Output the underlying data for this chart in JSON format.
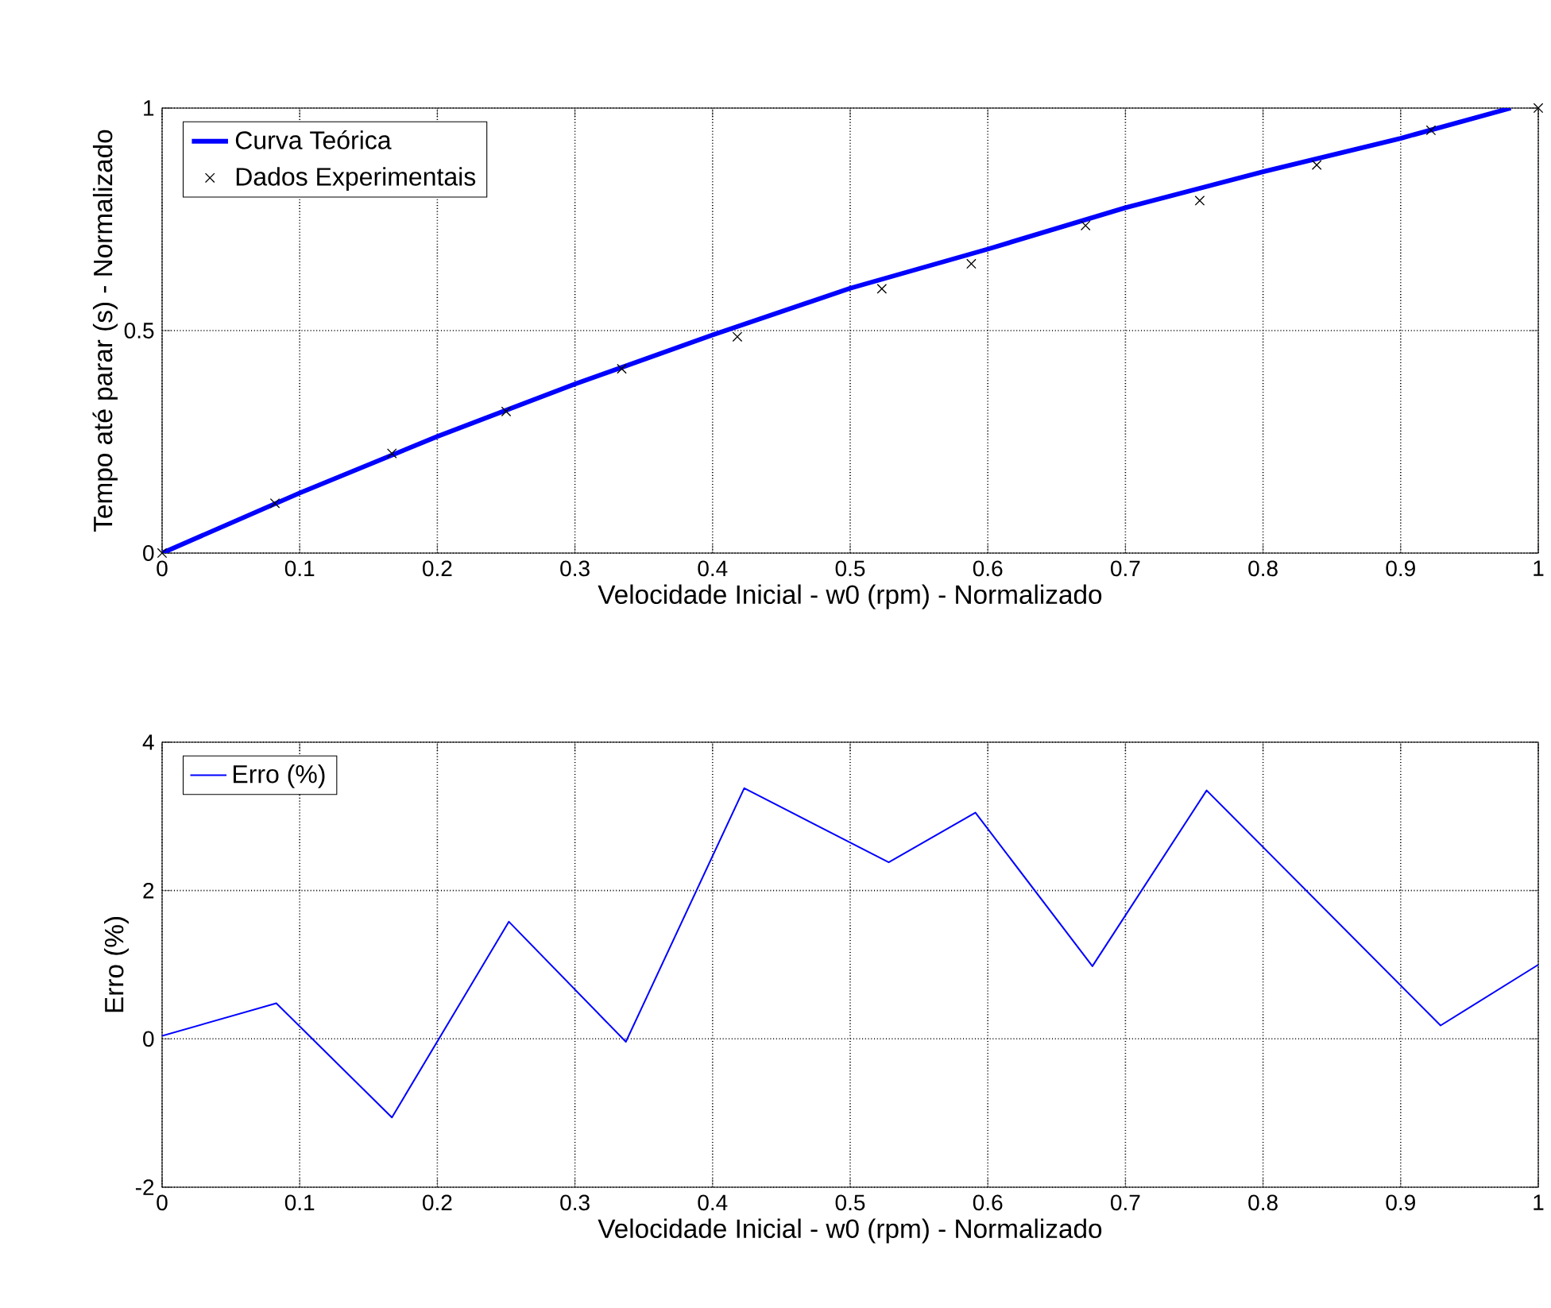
{
  "chart_data": [
    {
      "type": "line",
      "xlabel": "Velocidade Inicial - w0 (rpm) - Normalizado",
      "ylabel": "Tempo até parar (s) - Normalizado",
      "xlim": [
        0,
        1
      ],
      "ylim": [
        0,
        1
      ],
      "xticks": [
        0,
        0.1,
        0.2,
        0.3,
        0.4,
        0.5,
        0.6,
        0.7,
        0.8,
        0.9,
        1
      ],
      "yticks": [
        0,
        0.5,
        1
      ],
      "grid": true,
      "legend": "top left",
      "series": [
        {
          "name": "Curva Teórica",
          "color": "#0000ff",
          "x": [
            0,
            0.1,
            0.2,
            0.3,
            0.4,
            0.5,
            0.6,
            0.7,
            0.8,
            0.9,
            0.98
          ],
          "values": [
            0,
            0.135,
            0.262,
            0.38,
            0.49,
            0.595,
            0.683,
            0.776,
            0.857,
            0.932,
            1.0
          ]
        },
        {
          "name": "Dados Experimentais",
          "type": "scatter",
          "marker": "cross",
          "color": "#000000",
          "x": [
            0,
            0.082,
            0.167,
            0.25,
            0.334,
            0.418,
            0.523,
            0.588,
            0.671,
            0.754,
            0.839,
            0.922,
            1.0
          ],
          "values": [
            0,
            0.112,
            0.224,
            0.318,
            0.414,
            0.486,
            0.594,
            0.65,
            0.736,
            0.792,
            0.872,
            0.95,
            1.0
          ]
        }
      ]
    },
    {
      "type": "line",
      "xlabel": "Velocidade Inicial - w0 (rpm) - Normalizado",
      "ylabel": "Erro  (%)",
      "xlim": [
        0,
        1
      ],
      "ylim": [
        -2,
        4
      ],
      "xticks": [
        0,
        0.1,
        0.2,
        0.3,
        0.4,
        0.5,
        0.6,
        0.7,
        0.8,
        0.9,
        1
      ],
      "yticks": [
        -2,
        0,
        2,
        4
      ],
      "grid": true,
      "legend": "top left",
      "series": [
        {
          "name": "Erro (%)",
          "color": "#0000ff",
          "x": [
            0,
            0.083,
            0.167,
            0.252,
            0.337,
            0.423,
            0.528,
            0.591,
            0.676,
            0.759,
            0.929,
            1.0
          ],
          "values": [
            0.04,
            0.48,
            -1.06,
            1.58,
            -0.04,
            3.38,
            2.38,
            3.05,
            0.98,
            3.35,
            0.18,
            1.0
          ]
        }
      ]
    }
  ]
}
